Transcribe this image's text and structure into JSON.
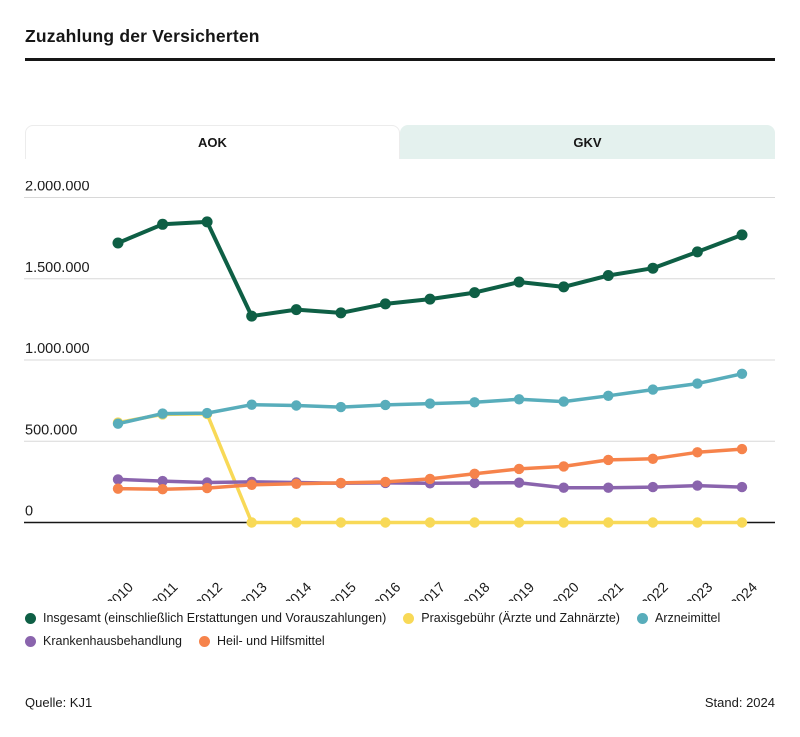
{
  "header": {
    "title": "Zuzahlung der Versicherten"
  },
  "tabs": [
    {
      "label": "AOK",
      "active": true
    },
    {
      "label": "GKV",
      "active": false
    }
  ],
  "chart_data": {
    "type": "line",
    "title": "Zuzahlung der Versicherten",
    "xlabel": "",
    "ylabel": "",
    "ylim": [
      0,
      2000000
    ],
    "grid": true,
    "legend_position": "bottom",
    "x": [
      "2010",
      "2011",
      "2012",
      "2013",
      "2014",
      "2015",
      "2016",
      "2017",
      "2018",
      "2019",
      "2020",
      "2021",
      "2022",
      "2023",
      "2024"
    ],
    "y_ticks": [
      0,
      500000,
      1000000,
      1500000,
      2000000
    ],
    "y_tick_labels": [
      "0",
      "500.000",
      "1.000.000",
      "1.500.000",
      "2.000.000"
    ],
    "series": [
      {
        "name": "Insgesamt (einschließlich Erstattungen und Vorauszahlungen)",
        "color": "#0e5f45",
        "values": [
          1720000,
          1835000,
          1850000,
          1270000,
          1310000,
          1290000,
          1345000,
          1375000,
          1415000,
          1480000,
          1450000,
          1520000,
          1565000,
          1665000,
          1770000
        ]
      },
      {
        "name": "Praxisgebühr (Ärzte und Zahnärzte)",
        "color": "#f8d957",
        "values": [
          615000,
          665000,
          668000,
          0,
          0,
          0,
          0,
          0,
          0,
          0,
          0,
          0,
          0,
          0,
          0
        ]
      },
      {
        "name": "Arzneimittel",
        "color": "#58adbb",
        "values": [
          608000,
          670000,
          673000,
          725000,
          720000,
          710000,
          724000,
          732000,
          740000,
          758000,
          744000,
          780000,
          818000,
          855000,
          915000
        ]
      },
      {
        "name": "Krankenhausbehandlung",
        "color": "#8a64ad",
        "values": [
          265000,
          255000,
          246000,
          250000,
          246000,
          241000,
          244000,
          241000,
          243000,
          245000,
          214000,
          214000,
          218000,
          227000,
          218000
        ]
      },
      {
        "name": "Heil- und Hilfsmittel",
        "color": "#f6834b",
        "values": [
          208000,
          205000,
          212000,
          232000,
          238000,
          244000,
          250000,
          268000,
          300000,
          330000,
          345000,
          385000,
          392000,
          432000,
          452000
        ]
      }
    ]
  },
  "footer": {
    "source": "Quelle: KJ1",
    "stand": "Stand: 2024"
  }
}
